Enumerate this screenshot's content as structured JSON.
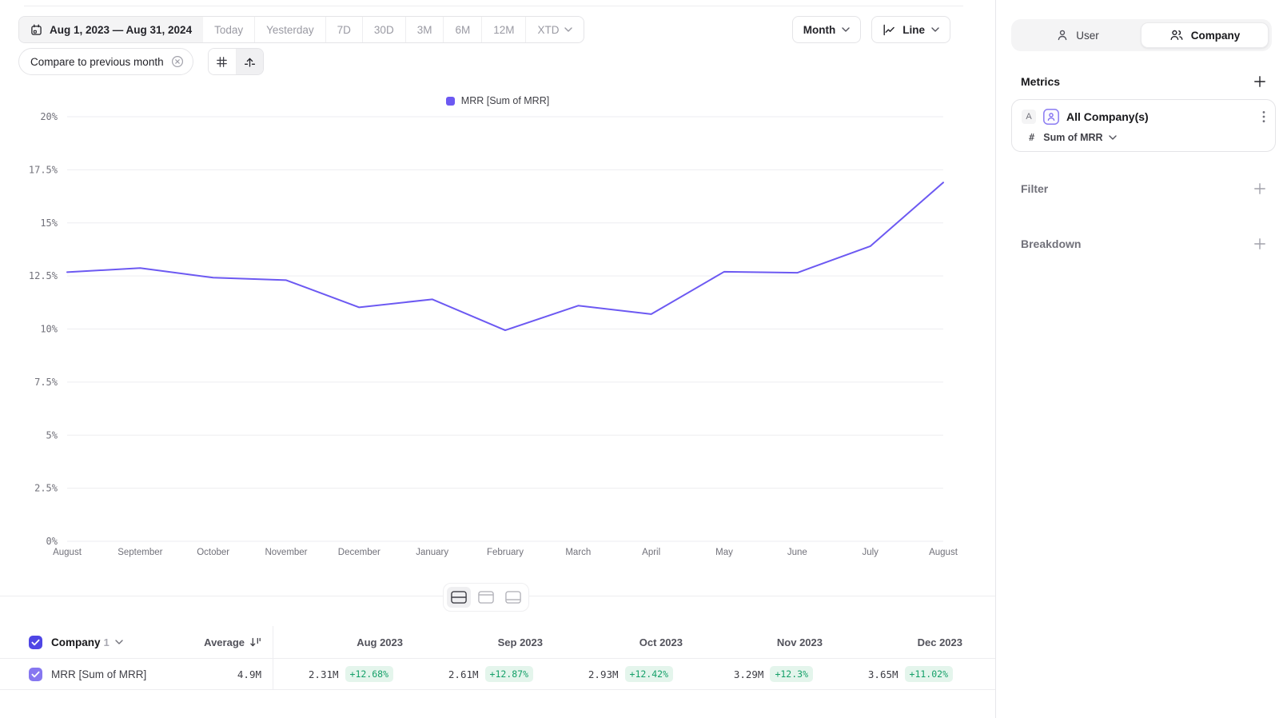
{
  "toolbar": {
    "date_range": "Aug 1, 2023 — Aug 31, 2024",
    "presets": [
      "Today",
      "Yesterday",
      "7D",
      "30D",
      "3M",
      "6M",
      "12M"
    ],
    "xtd_label": "XTD",
    "granularity_label": "Month",
    "chart_type_label": "Line",
    "compare_chip": "Compare to previous month"
  },
  "sidebar": {
    "audience_toggle": {
      "user_label": "User",
      "company_label": "Company",
      "selected": "Company"
    },
    "metrics_title": "Metrics",
    "metric_card": {
      "badge": "A",
      "icon": "company-avatar-icon",
      "name": "All Company(s)",
      "hash": "#",
      "aggregation": "Sum of MRR"
    },
    "filter_label": "Filter",
    "breakdown_label": "Breakdown"
  },
  "chart_data": {
    "type": "line",
    "title": "",
    "xlabel": "",
    "ylabel": "",
    "categories": [
      "August",
      "September",
      "October",
      "November",
      "December",
      "January",
      "February",
      "March",
      "April",
      "May",
      "June",
      "July",
      "August"
    ],
    "series": [
      {
        "name": "MRR [Sum of MRR]",
        "color": "#6C59F2",
        "values": [
          12.68,
          12.87,
          12.42,
          12.3,
          11.02,
          11.4,
          9.94,
          11.1,
          10.7,
          12.7,
          12.65,
          13.9,
          16.9
        ]
      }
    ],
    "ylim": [
      0,
      20
    ],
    "yticks": [
      0,
      2.5,
      5,
      7.5,
      10,
      12.5,
      15,
      17.5,
      20
    ],
    "ytick_labels": [
      "0%",
      "2.5%",
      "5%",
      "7.5%",
      "10%",
      "12.5%",
      "15%",
      "17.5%",
      "20%"
    ],
    "grid": true,
    "legend_position": "top"
  },
  "table": {
    "group_label": "Company",
    "group_count": "1",
    "average_label": "Average",
    "row": {
      "name": "MRR [Sum of MRR]",
      "average": "4.9M",
      "cells": [
        {
          "period": "Aug 2023",
          "value": "2.31M",
          "delta": "+12.68%"
        },
        {
          "period": "Sep 2023",
          "value": "2.61M",
          "delta": "+12.87%"
        },
        {
          "period": "Oct 2023",
          "value": "2.93M",
          "delta": "+12.42%"
        },
        {
          "period": "Nov 2023",
          "value": "3.29M",
          "delta": "+12.3%"
        },
        {
          "period": "Dec 2023",
          "value": "3.65M",
          "delta": "+11.02%"
        }
      ]
    }
  },
  "colors": {
    "line": "#6C59F2",
    "header_checkbox": "#4F46E5",
    "row_checkbox": "#8677F0",
    "delta_text": "#16A069",
    "delta_bg": "#E4F5EC",
    "grid_line": "#EDEDF0"
  }
}
